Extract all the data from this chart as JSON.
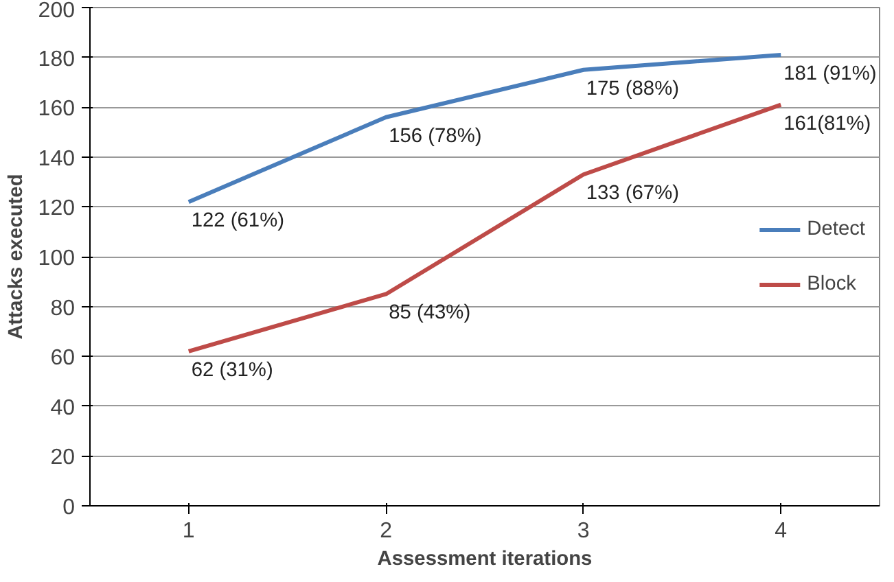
{
  "chart_data": {
    "type": "line",
    "xlabel": "Assessment iterations",
    "ylabel": "Attacks executed",
    "categories": [
      "1",
      "2",
      "3",
      "4"
    ],
    "series": [
      {
        "name": "Detect",
        "color": "#4a7ebb",
        "values": [
          122,
          156,
          175,
          181
        ],
        "value_labels": [
          "122 (61%)",
          "156 (78%)",
          "175 (88%)",
          "181 (91%)"
        ]
      },
      {
        "name": "Block",
        "color": "#be4b48",
        "values": [
          62,
          85,
          133,
          161
        ],
        "value_labels": [
          "62 (31%)",
          "85 (43%)",
          "133 (67%)",
          "161(81%)"
        ]
      }
    ],
    "ylim": [
      0,
      200
    ],
    "yticks": [
      0,
      20,
      40,
      60,
      80,
      100,
      120,
      140,
      160,
      180,
      200
    ],
    "grid": "y",
    "legend": "right",
    "marker": "none",
    "line_style": "solid"
  }
}
